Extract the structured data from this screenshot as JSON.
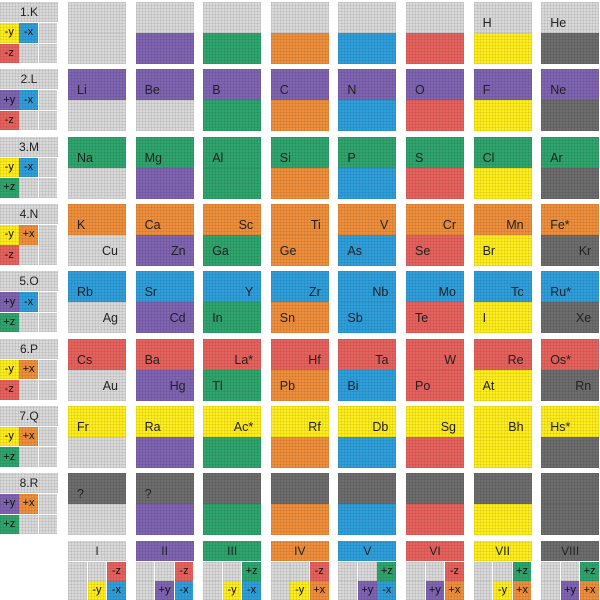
{
  "colors": {
    "gray": "#d9d9d9",
    "purple": "#7f64b2",
    "green": "#2fa56e",
    "orange": "#ef8f3c",
    "blue": "#2f9fdc",
    "red": "#e7625c",
    "yellow": "#ffee1c",
    "darkgray": "#6d6d6d"
  },
  "periods": [
    {
      "label": "1.K",
      "cells": [
        {
          "text": "-y",
          "color": "yellow"
        },
        {
          "text": "-x",
          "color": "blue"
        },
        {
          "text": "",
          "color": "gray"
        },
        {
          "text": "-z",
          "color": "red"
        },
        {
          "text": "",
          "color": "gray"
        },
        {
          "text": "",
          "color": "gray"
        }
      ]
    },
    {
      "label": "2.L",
      "cells": [
        {
          "text": "+y",
          "color": "purple"
        },
        {
          "text": "-x",
          "color": "blue"
        },
        {
          "text": "",
          "color": "gray"
        },
        {
          "text": "-z",
          "color": "red"
        },
        {
          "text": "",
          "color": "gray"
        },
        {
          "text": "",
          "color": "gray"
        }
      ]
    },
    {
      "label": "3.M",
      "cells": [
        {
          "text": "-y",
          "color": "yellow"
        },
        {
          "text": "-x",
          "color": "blue"
        },
        {
          "text": "",
          "color": "gray"
        },
        {
          "text": "+z",
          "color": "green"
        },
        {
          "text": "",
          "color": "gray"
        },
        {
          "text": "",
          "color": "gray"
        }
      ]
    },
    {
      "label": "4.N",
      "cells": [
        {
          "text": "-y",
          "color": "yellow"
        },
        {
          "text": "+x",
          "color": "orange"
        },
        {
          "text": "",
          "color": "gray"
        },
        {
          "text": "-z",
          "color": "red"
        },
        {
          "text": "",
          "color": "gray"
        },
        {
          "text": "",
          "color": "gray"
        }
      ]
    },
    {
      "label": "5.O",
      "cells": [
        {
          "text": "+y",
          "color": "purple"
        },
        {
          "text": "-x",
          "color": "blue"
        },
        {
          "text": "",
          "color": "gray"
        },
        {
          "text": "+z",
          "color": "green"
        },
        {
          "text": "",
          "color": "gray"
        },
        {
          "text": "",
          "color": "gray"
        }
      ]
    },
    {
      "label": "6.P",
      "cells": [
        {
          "text": "-y",
          "color": "yellow"
        },
        {
          "text": "+x",
          "color": "orange"
        },
        {
          "text": "",
          "color": "gray"
        },
        {
          "text": "-z",
          "color": "red"
        },
        {
          "text": "",
          "color": "gray"
        },
        {
          "text": "",
          "color": "gray"
        }
      ]
    },
    {
      "label": "7.Q",
      "cells": [
        {
          "text": "-y",
          "color": "yellow"
        },
        {
          "text": "+x",
          "color": "orange"
        },
        {
          "text": "",
          "color": "gray"
        },
        {
          "text": "+z",
          "color": "green"
        },
        {
          "text": "",
          "color": "gray"
        },
        {
          "text": "",
          "color": "gray"
        }
      ]
    },
    {
      "label": "8.R",
      "cells": [
        {
          "text": "+y",
          "color": "purple"
        },
        {
          "text": "+x",
          "color": "orange"
        },
        {
          "text": "",
          "color": "gray"
        },
        {
          "text": "+z",
          "color": "green"
        },
        {
          "text": "",
          "color": "gray"
        },
        {
          "text": "",
          "color": "gray"
        }
      ]
    }
  ],
  "rows": [
    [
      {
        "top": "gray",
        "bottom": "gray",
        "tl": "",
        "br": ""
      },
      {
        "top": "gray",
        "bottom": "purple",
        "tl": "",
        "br": ""
      },
      {
        "top": "gray",
        "bottom": "green",
        "tl": "",
        "br": ""
      },
      {
        "top": "gray",
        "bottom": "orange",
        "tl": "",
        "br": ""
      },
      {
        "top": "gray",
        "bottom": "blue",
        "tl": "",
        "br": ""
      },
      {
        "top": "gray",
        "bottom": "red",
        "tl": "",
        "br": ""
      },
      {
        "top": "gray",
        "bottom": "yellow",
        "tl": "H",
        "br": ""
      },
      {
        "top": "gray",
        "bottom": "darkgray",
        "tl": "He",
        "br": ""
      }
    ],
    [
      {
        "top": "purple",
        "bottom": "gray",
        "tl": "Li",
        "br": ""
      },
      {
        "top": "purple",
        "bottom": "gray",
        "tl": "Be",
        "br": ""
      },
      {
        "top": "purple",
        "bottom": "green",
        "tl": "B",
        "br": ""
      },
      {
        "top": "purple",
        "bottom": "orange",
        "tl": "C",
        "br": ""
      },
      {
        "top": "purple",
        "bottom": "blue",
        "tl": "N",
        "br": ""
      },
      {
        "top": "purple",
        "bottom": "red",
        "tl": "O",
        "br": ""
      },
      {
        "top": "purple",
        "bottom": "yellow",
        "tl": "F",
        "br": ""
      },
      {
        "top": "purple",
        "bottom": "darkgray",
        "tl": "Ne",
        "br": ""
      }
    ],
    [
      {
        "top": "green",
        "bottom": "gray",
        "tl": "Na",
        "br": ""
      },
      {
        "top": "green",
        "bottom": "purple",
        "tl": "Mg",
        "br": ""
      },
      {
        "top": "green",
        "bottom": "green",
        "tl": "Al",
        "br": ""
      },
      {
        "top": "green",
        "bottom": "orange",
        "tl": "Si",
        "br": ""
      },
      {
        "top": "green",
        "bottom": "blue",
        "tl": "P",
        "br": ""
      },
      {
        "top": "green",
        "bottom": "red",
        "tl": "S",
        "br": ""
      },
      {
        "top": "green",
        "bottom": "yellow",
        "tl": "Cl",
        "br": ""
      },
      {
        "top": "green",
        "bottom": "darkgray",
        "tl": "Ar",
        "br": ""
      }
    ],
    [
      {
        "top": "orange",
        "bottom": "gray",
        "tl": "K",
        "br": "Cu"
      },
      {
        "top": "orange",
        "bottom": "purple",
        "tl": "Ca",
        "br": "Zn"
      },
      {
        "top": "orange",
        "bottom": "green",
        "tr": "Sc",
        "bl": "Ga"
      },
      {
        "top": "orange",
        "bottom": "orange",
        "tr": "Ti",
        "bl": "Ge"
      },
      {
        "top": "orange",
        "bottom": "blue",
        "tr": "V",
        "bl": "As"
      },
      {
        "top": "orange",
        "bottom": "red",
        "tr": "Cr",
        "bl": "Se"
      },
      {
        "top": "orange",
        "bottom": "yellow",
        "tr": "Mn",
        "bl": "Br"
      },
      {
        "top": "orange",
        "bottom": "darkgray",
        "tl": "Fe*",
        "br": "Kr"
      }
    ],
    [
      {
        "top": "blue",
        "bottom": "gray",
        "tl": "Rb",
        "br": "Ag"
      },
      {
        "top": "blue",
        "bottom": "purple",
        "tl": "Sr",
        "br": "Cd"
      },
      {
        "top": "blue",
        "bottom": "green",
        "tr": "Y",
        "bl": "In"
      },
      {
        "top": "blue",
        "bottom": "orange",
        "tr": "Zr",
        "bl": "Sn"
      },
      {
        "top": "blue",
        "bottom": "blue",
        "tr": "Nb",
        "bl": "Sb"
      },
      {
        "top": "blue",
        "bottom": "red",
        "tr": "Mo",
        "bl": "Te"
      },
      {
        "top": "blue",
        "bottom": "yellow",
        "tr": "Tc",
        "bl": "I"
      },
      {
        "top": "blue",
        "bottom": "darkgray",
        "tl": "Ru*",
        "br": "Xe"
      }
    ],
    [
      {
        "top": "red",
        "bottom": "gray",
        "tl": "Cs",
        "br": "Au"
      },
      {
        "top": "red",
        "bottom": "purple",
        "tl": "Ba",
        "br": "Hg"
      },
      {
        "top": "red",
        "bottom": "green",
        "tr": "La*",
        "bl": "Tl"
      },
      {
        "top": "red",
        "bottom": "orange",
        "tr": "Hf",
        "bl": "Pb"
      },
      {
        "top": "red",
        "bottom": "blue",
        "tr": "Ta",
        "bl": "Bi"
      },
      {
        "top": "red",
        "bottom": "red",
        "tr": "W",
        "bl": "Po"
      },
      {
        "top": "red",
        "bottom": "yellow",
        "tr": "Re",
        "bl": "At"
      },
      {
        "top": "red",
        "bottom": "darkgray",
        "tl": "Os*",
        "br": "Rn"
      }
    ],
    [
      {
        "top": "yellow",
        "bottom": "gray",
        "tl": "Fr",
        "br": ""
      },
      {
        "top": "yellow",
        "bottom": "purple",
        "tl": "Ra",
        "br": ""
      },
      {
        "top": "yellow",
        "bottom": "green",
        "tr": "Ac*",
        "bl": ""
      },
      {
        "top": "yellow",
        "bottom": "orange",
        "tr": "Rf",
        "bl": ""
      },
      {
        "top": "yellow",
        "bottom": "blue",
        "tr": "Db",
        "bl": ""
      },
      {
        "top": "yellow",
        "bottom": "red",
        "tr": "Sg",
        "bl": ""
      },
      {
        "top": "yellow",
        "bottom": "yellow",
        "tr": "Bh",
        "bl": ""
      },
      {
        "top": "yellow",
        "bottom": "darkgray",
        "tl": "Hs*",
        "br": ""
      }
    ],
    [
      {
        "top": "darkgray",
        "bottom": "gray",
        "tl": "?",
        "br": ""
      },
      {
        "top": "darkgray",
        "bottom": "purple",
        "tl": "?",
        "br": ""
      },
      {
        "top": "darkgray",
        "bottom": "green",
        "tl": "",
        "br": ""
      },
      {
        "top": "darkgray",
        "bottom": "orange",
        "tl": "",
        "br": ""
      },
      {
        "top": "darkgray",
        "bottom": "blue",
        "tl": "",
        "br": ""
      },
      {
        "top": "darkgray",
        "bottom": "red",
        "tl": "",
        "br": ""
      },
      {
        "top": "darkgray",
        "bottom": "yellow",
        "tl": "",
        "br": ""
      },
      {
        "top": "darkgray",
        "bottom": "darkgray",
        "tl": "",
        "br": ""
      }
    ]
  ],
  "groups": [
    {
      "label": "I",
      "title_color": "gray",
      "cells": [
        {
          "text": "",
          "color": "gray"
        },
        {
          "text": "",
          "color": "gray"
        },
        {
          "text": "-z",
          "color": "red"
        },
        {
          "text": "",
          "color": "gray"
        },
        {
          "text": "-y",
          "color": "yellow"
        },
        {
          "text": "-x",
          "color": "blue"
        }
      ]
    },
    {
      "label": "II",
      "title_color": "purple",
      "cells": [
        {
          "text": "",
          "color": "gray"
        },
        {
          "text": "",
          "color": "gray"
        },
        {
          "text": "-z",
          "color": "red"
        },
        {
          "text": "",
          "color": "gray"
        },
        {
          "text": "+y",
          "color": "purple"
        },
        {
          "text": "-x",
          "color": "blue"
        }
      ]
    },
    {
      "label": "III",
      "title_color": "green",
      "cells": [
        {
          "text": "",
          "color": "gray"
        },
        {
          "text": "",
          "color": "gray"
        },
        {
          "text": "+z",
          "color": "green"
        },
        {
          "text": "",
          "color": "gray"
        },
        {
          "text": "-y",
          "color": "yellow"
        },
        {
          "text": "-x",
          "color": "blue"
        }
      ]
    },
    {
      "label": "IV",
      "title_color": "orange",
      "cells": [
        {
          "text": "",
          "color": "gray"
        },
        {
          "text": "",
          "color": "gray"
        },
        {
          "text": "-z",
          "color": "red"
        },
        {
          "text": "",
          "color": "gray"
        },
        {
          "text": "-y",
          "color": "yellow"
        },
        {
          "text": "+x",
          "color": "orange"
        }
      ]
    },
    {
      "label": "V",
      "title_color": "blue",
      "cells": [
        {
          "text": "",
          "color": "gray"
        },
        {
          "text": "",
          "color": "gray"
        },
        {
          "text": "+z",
          "color": "green"
        },
        {
          "text": "",
          "color": "gray"
        },
        {
          "text": "+y",
          "color": "purple"
        },
        {
          "text": "-x",
          "color": "blue"
        }
      ]
    },
    {
      "label": "VI",
      "title_color": "red",
      "cells": [
        {
          "text": "",
          "color": "gray"
        },
        {
          "text": "",
          "color": "gray"
        },
        {
          "text": "-z",
          "color": "red"
        },
        {
          "text": "",
          "color": "gray"
        },
        {
          "text": "+y",
          "color": "purple"
        },
        {
          "text": "+x",
          "color": "orange"
        }
      ]
    },
    {
      "label": "VII",
      "title_color": "yellow",
      "cells": [
        {
          "text": "",
          "color": "gray"
        },
        {
          "text": "",
          "color": "gray"
        },
        {
          "text": "+z",
          "color": "green"
        },
        {
          "text": "",
          "color": "gray"
        },
        {
          "text": "-y",
          "color": "yellow"
        },
        {
          "text": "+x",
          "color": "orange"
        }
      ]
    },
    {
      "label": "VIII",
      "title_color": "darkgray",
      "cells": [
        {
          "text": "",
          "color": "gray"
        },
        {
          "text": "",
          "color": "gray"
        },
        {
          "text": "+z",
          "color": "green"
        },
        {
          "text": "",
          "color": "gray"
        },
        {
          "text": "+y",
          "color": "purple"
        },
        {
          "text": "+x",
          "color": "orange"
        }
      ]
    }
  ]
}
